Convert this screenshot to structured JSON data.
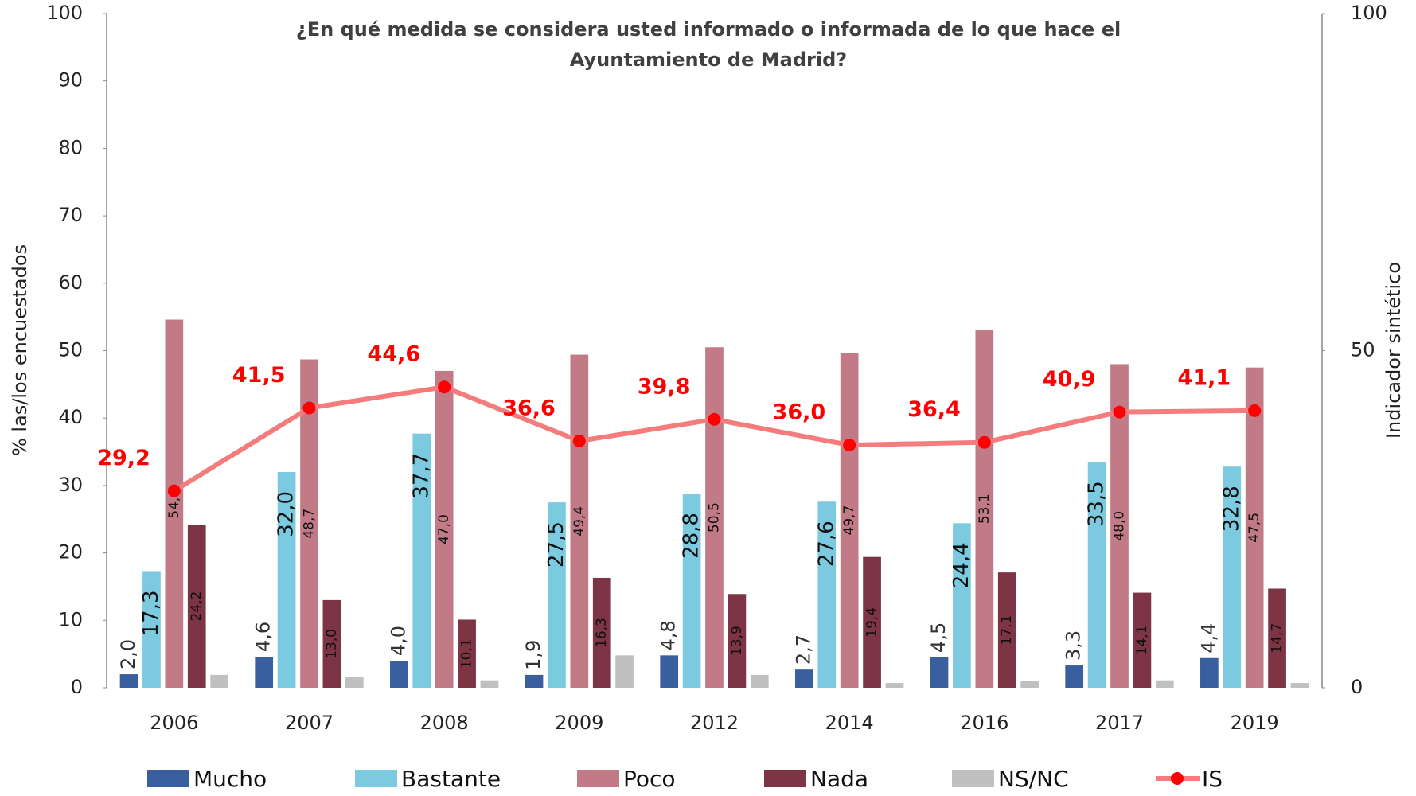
{
  "chart_data": {
    "type": "bar",
    "title": "¿En qué medida se considera usted informado o informada de lo que hace el Ayuntamiento de Madrid?",
    "y_label": "% las/los encuestados",
    "y2_label": "Indicador sintético",
    "categories": [
      "2006",
      "2007",
      "2008",
      "2009",
      "2012",
      "2014",
      "2016",
      "2017",
      "2019"
    ],
    "series": [
      {
        "name": "Mucho",
        "color": "#3a5f9e",
        "values": [
          2.0,
          4.6,
          4.0,
          1.9,
          4.8,
          2.7,
          4.5,
          3.3,
          4.4
        ],
        "value_labels": [
          "2,0",
          "4,6",
          "4,0",
          "1,9",
          "4,8",
          "2,7",
          "4,5",
          "3,3",
          "4,4"
        ]
      },
      {
        "name": "Bastante",
        "color": "#7ccadf",
        "values": [
          17.3,
          32.0,
          37.7,
          27.5,
          28.8,
          27.6,
          24.4,
          33.5,
          32.8
        ],
        "value_labels": [
          "17,3",
          "32,0",
          "37,7",
          "27,5",
          "28,8",
          "27,6",
          "24,4",
          "33,5",
          "32,8"
        ]
      },
      {
        "name": "Poco",
        "color": "#c17a86",
        "values": [
          54.6,
          48.7,
          47.0,
          49.4,
          50.5,
          49.7,
          53.1,
          48.0,
          47.5
        ],
        "value_labels": [
          "54,6",
          "48,7",
          "47,0",
          "49,4",
          "50,5",
          "49,7",
          "53,1",
          "48,0",
          "47,5"
        ]
      },
      {
        "name": "Nada",
        "color": "#7d3444",
        "values": [
          24.2,
          13.0,
          10.1,
          16.3,
          13.9,
          19.4,
          17.1,
          14.1,
          14.7
        ],
        "value_labels": [
          "24,2",
          "13,0",
          "10,1",
          "16,3",
          "13,9",
          "19,4",
          "17,1",
          "14,1",
          "14,7"
        ]
      },
      {
        "name": "NS/NC",
        "color": "#c0c0c0",
        "values": [
          1.9,
          1.6,
          1.1,
          4.8,
          1.9,
          0.7,
          1.0,
          1.1,
          0.7
        ]
      },
      {
        "name": "IS",
        "type": "line",
        "axis": "y2",
        "color": "#f47c7c",
        "marker_color": "#ff0000",
        "values": [
          29.2,
          41.5,
          44.6,
          36.6,
          39.8,
          36.0,
          36.4,
          40.9,
          41.1
        ],
        "value_labels": [
          "29,2",
          "41,5",
          "44,6",
          "36,6",
          "39,8",
          "36,0",
          "36,4",
          "40,9",
          "41,1"
        ]
      }
    ],
    "ylim": [
      0,
      100
    ],
    "yticks": [
      0,
      10,
      20,
      30,
      40,
      50,
      60,
      70,
      80,
      90,
      100
    ],
    "y2lim": [
      0,
      100
    ],
    "y2ticks": [
      0,
      50,
      100
    ],
    "grid": false,
    "legend": "bottom"
  }
}
